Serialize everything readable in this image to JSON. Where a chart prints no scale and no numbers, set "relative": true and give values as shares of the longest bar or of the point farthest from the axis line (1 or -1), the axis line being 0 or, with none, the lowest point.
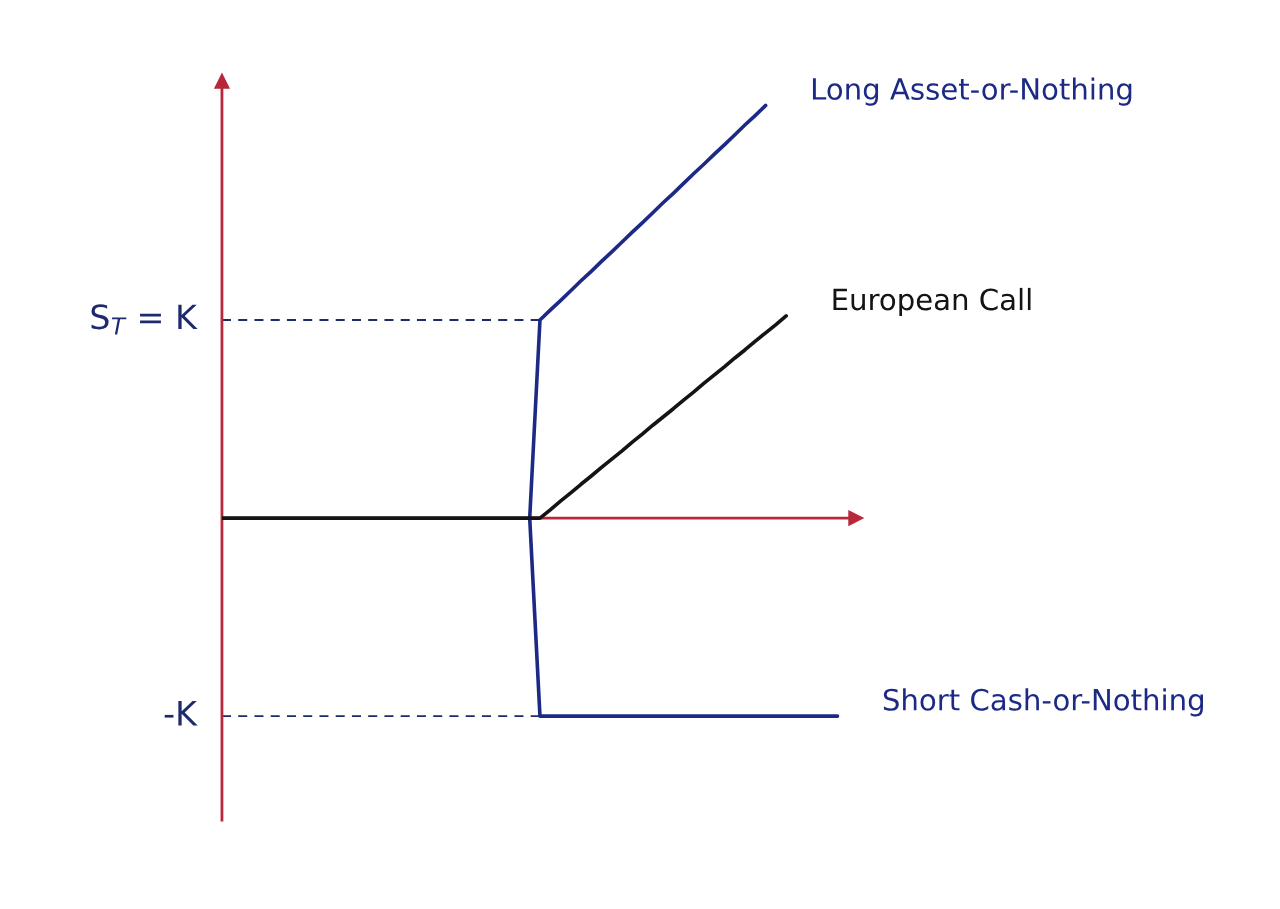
{
  "chart_data": {
    "type": "line",
    "relative": true,
    "categories": [
      null,
      null,
      null,
      null,
      null,
      null,
      null,
      null,
      null,
      null,
      null,
      null,
      null,
      null,
      null,
      null,
      null,
      null,
      null,
      null,
      null,
      null,
      null,
      null,
      null,
      null,
      null,
      null,
      null,
      null,
      null,
      null,
      null,
      null,
      null,
      null,
      null,
      null,
      null,
      null,
      null,
      null,
      null,
      null,
      null,
      null,
      null,
      null,
      null,
      null,
      null,
      null,
      null,
      null,
      null,
      null,
      null,
      null,
      null,
      null,
      null
    ],
    "series": [
      {
        "name": "Long Asset-or-Nothing",
        "color": "#1c2a86",
        "values": [
          null,
          null,
          null,
          null,
          null,
          null,
          null,
          null,
          null,
          null,
          null,
          null,
          null,
          null,
          null,
          null,
          null,
          null,
          null,
          null,
          null,
          null,
          null,
          null,
          null,
          null,
          null,
          null,
          null,
          null,
          0,
          0.48,
          0.504,
          0.527,
          0.551,
          0.575,
          0.598,
          0.622,
          0.645,
          0.669,
          0.693,
          0.716,
          0.74,
          0.764,
          0.787,
          0.811,
          0.835,
          0.858,
          0.882,
          0.905,
          0.929,
          0.953,
          0.976,
          1,
          null,
          null,
          null,
          null,
          null,
          null,
          null
        ]
      },
      {
        "name": "Short Cash-or-Nothing",
        "color": "#1c2a86",
        "values": [
          null,
          null,
          null,
          null,
          null,
          null,
          null,
          null,
          null,
          null,
          null,
          null,
          null,
          null,
          null,
          null,
          null,
          null,
          null,
          null,
          null,
          null,
          null,
          null,
          null,
          null,
          null,
          null,
          null,
          null,
          0,
          -0.48,
          -0.48,
          -0.48,
          -0.48,
          -0.48,
          -0.48,
          -0.48,
          -0.48,
          -0.48,
          -0.48,
          -0.48,
          -0.48,
          -0.48,
          -0.48,
          -0.48,
          -0.48,
          -0.48,
          -0.48,
          -0.48,
          -0.48,
          -0.48,
          -0.48,
          -0.48,
          -0.48,
          -0.48,
          -0.48,
          -0.48,
          -0.48,
          -0.48,
          -0.48
        ]
      },
      {
        "name": "European Call",
        "color": "#141414",
        "values": [
          0,
          0,
          0,
          0,
          0,
          0,
          0,
          0,
          0,
          0,
          0,
          0,
          0,
          0,
          0,
          0,
          0,
          0,
          0,
          0,
          0,
          0,
          0,
          0,
          0,
          0,
          0,
          0,
          0,
          0,
          0,
          0,
          0.02,
          0.041,
          0.061,
          0.082,
          0.102,
          0.123,
          0.143,
          0.163,
          0.184,
          0.204,
          0.225,
          0.245,
          0.265,
          0.286,
          0.306,
          0.327,
          0.347,
          0.367,
          0.388,
          0.408,
          0.429,
          0.449,
          0.469,
          0.49,
          null,
          null,
          null,
          null,
          null
        ]
      }
    ],
    "ref_lines": [
      {
        "axis": "y",
        "value": 0,
        "color": "#b8283a",
        "line_style": "solid"
      },
      {
        "axis": "y",
        "value": 0.48,
        "label": "S$_{T}$ = K",
        "color": "#1f2a6e",
        "line_style": "dashed"
      },
      {
        "axis": "y",
        "value": -0.48,
        "label": "-K",
        "color": "#1f2a6e",
        "line_style": "dashed"
      }
    ]
  }
}
